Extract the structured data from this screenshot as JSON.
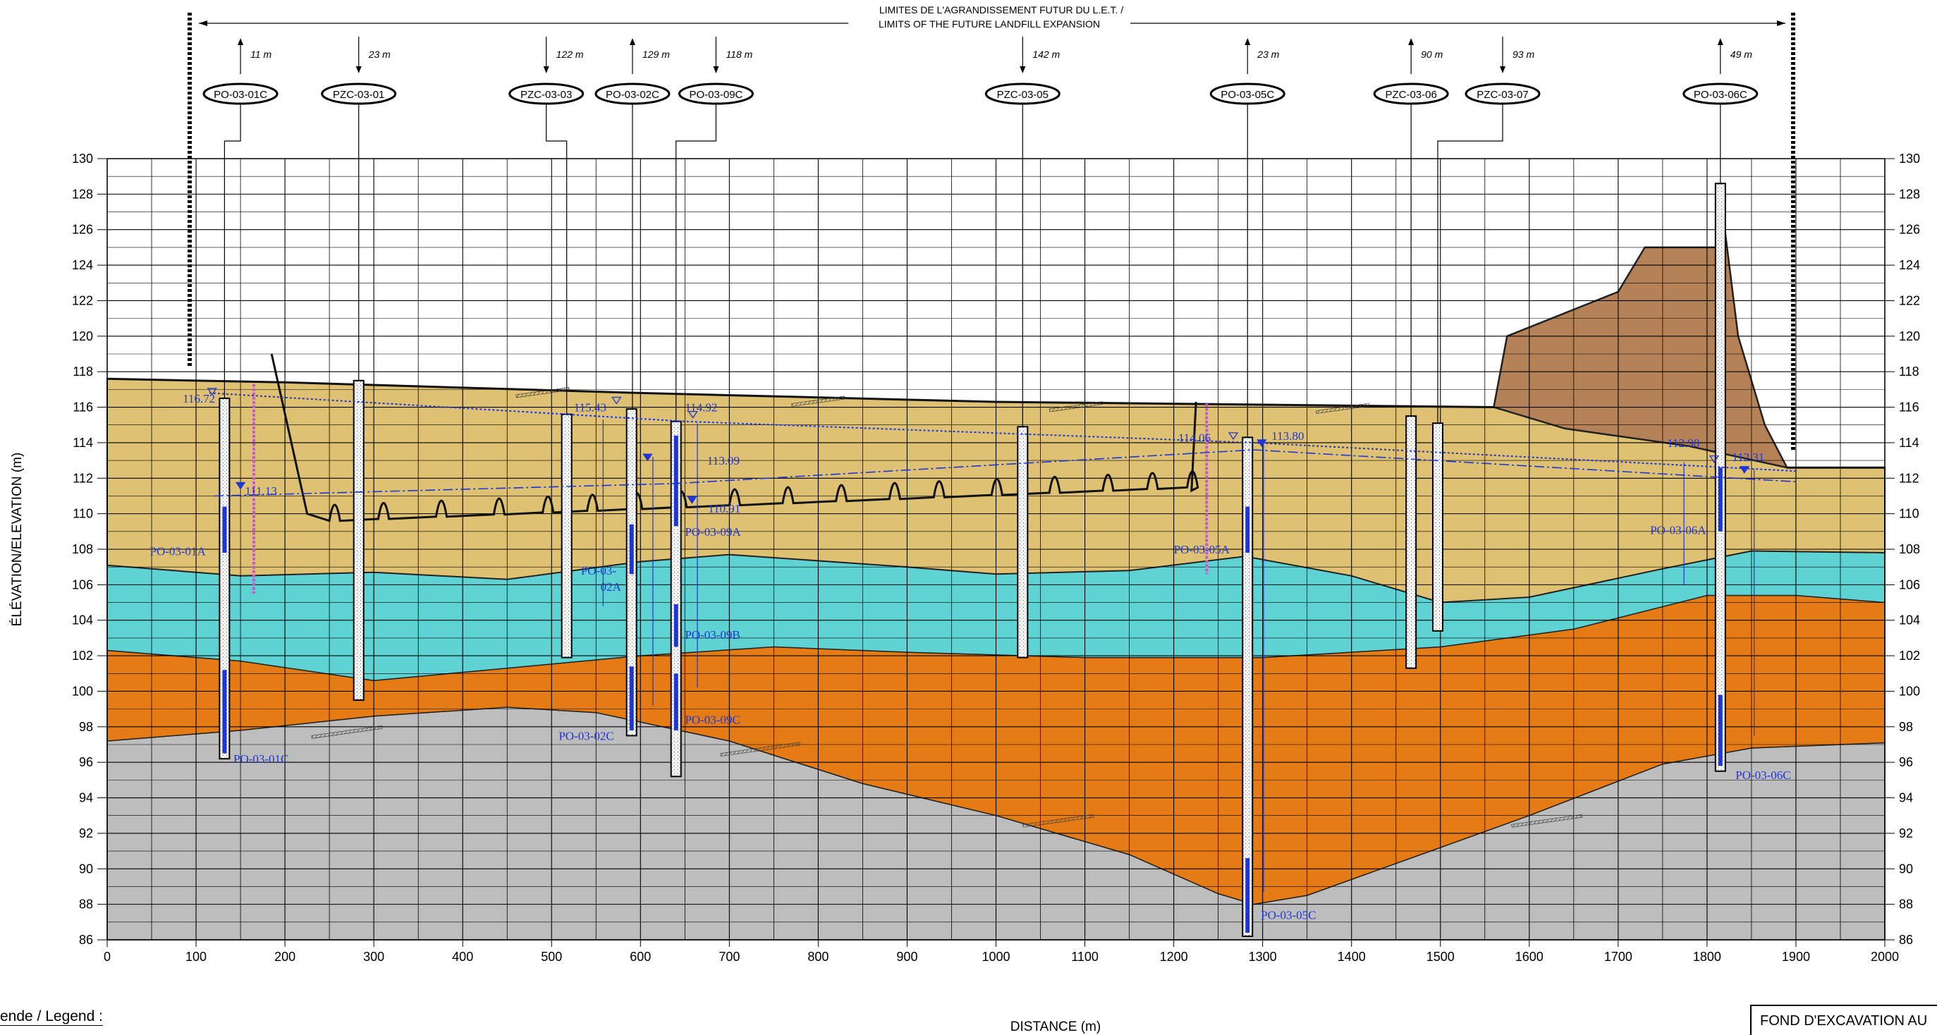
{
  "header": {
    "limits_fr": "LIMITES DE L'AGRANDISSEMENT FUTUR DU L.E.T. /",
    "limits_en": "LIMITS OF THE FUTURE LANDFILL EXPANSION"
  },
  "axes": {
    "y_label": "ÉLÉVATION/ELEVATION (m)",
    "x_label": "DISTANCE (m)",
    "y_ticks": [
      86,
      88,
      90,
      92,
      94,
      96,
      98,
      100,
      102,
      104,
      106,
      108,
      110,
      112,
      114,
      116,
      118,
      120,
      122,
      124,
      126,
      128,
      130
    ],
    "x_ticks": [
      0,
      100,
      200,
      300,
      400,
      500,
      600,
      700,
      800,
      900,
      1000,
      1100,
      1200,
      1300,
      1400,
      1500,
      1600,
      1700,
      1800,
      1900,
      2000
    ],
    "x_range": [
      0,
      2000
    ],
    "y_range": [
      86,
      130
    ]
  },
  "boreholes": [
    {
      "label": "PO-03-01C",
      "x": 150,
      "offset": "11 m",
      "dir": "up",
      "pipe_x": 132,
      "top": 116.5,
      "bottom": 96.2
    },
    {
      "label": "PZC-03-01",
      "x": 283,
      "offset": "23 m",
      "dir": "down",
      "pipe_x": 283,
      "top": 117.5,
      "bottom": 99.5
    },
    {
      "label": "PZC-03-03",
      "x": 494,
      "offset": "122 m",
      "dir": "down",
      "pipe_x": 517,
      "top": 115.6,
      "bottom": 101.9
    },
    {
      "label": "PO-03-02C",
      "x": 591,
      "offset": "129 m",
      "dir": "up",
      "pipe_x": 590,
      "top": 115.9,
      "bottom": 97.5
    },
    {
      "label": "PO-03-09C",
      "x": 685,
      "offset": "118 m",
      "dir": "down",
      "pipe_x": 640,
      "top": 115.2,
      "bottom": 95.2
    },
    {
      "label": "PZC-03-05",
      "x": 1030,
      "offset": "142 m",
      "dir": "down",
      "pipe_x": 1030,
      "top": 114.9,
      "bottom": 101.9
    },
    {
      "label": "PO-03-05C",
      "x": 1283,
      "offset": "23 m",
      "dir": "up",
      "pipe_x": 1283,
      "top": 114.3,
      "bottom": 86.2
    },
    {
      "label": "PZC-03-06",
      "x": 1467,
      "offset": "90 m",
      "dir": "up",
      "pipe_x": 1467,
      "top": 115.5,
      "bottom": 101.3
    },
    {
      "label": "PZC-03-07",
      "x": 1570,
      "offset": "93 m",
      "dir": "down",
      "pipe_x": 1497,
      "top": 115.1,
      "bottom": 103.4
    },
    {
      "label": "PO-03-06C",
      "x": 1815,
      "offset": "49 m",
      "dir": "up",
      "pipe_x": 1815,
      "top": 128.6,
      "bottom": 95.5
    }
  ],
  "water_levels": [
    {
      "value": "116.72",
      "x": 85,
      "y": 116.5
    },
    {
      "value": "111.13",
      "x": 155,
      "y": 111.3
    },
    {
      "value": "115.43",
      "x": 525,
      "y": 116.0
    },
    {
      "value": "114.92",
      "x": 650,
      "y": 116.0
    },
    {
      "value": "113.09",
      "x": 675,
      "y": 113.0
    },
    {
      "value": "110.91",
      "x": 676,
      "y": 110.3
    },
    {
      "value": "114.06",
      "x": 1205,
      "y": 114.3
    },
    {
      "value": "113.80",
      "x": 1310,
      "y": 114.4
    },
    {
      "value": "112.90",
      "x": 1755,
      "y": 114.0
    },
    {
      "value": "112.31",
      "x": 1828,
      "y": 113.2
    }
  ],
  "well_labels": [
    {
      "text": "PO-03-01A",
      "x": 48,
      "y": 107.9
    },
    {
      "text": "PO-03-01C",
      "x": 142,
      "y": 96.2
    },
    {
      "text": "PO-03-",
      "x": 533,
      "y": 106.8
    },
    {
      "text": "02A",
      "x": 555,
      "y": 105.9
    },
    {
      "text": "PO-03-02C",
      "x": 508,
      "y": 97.5
    },
    {
      "text": "PO-03-09A",
      "x": 650,
      "y": 109.0
    },
    {
      "text": "PO-03-09B",
      "x": 650,
      "y": 103.2
    },
    {
      "text": "PO-03-09C",
      "x": 650,
      "y": 98.4
    },
    {
      "text": "PO-03-05A",
      "x": 1200,
      "y": 108.0
    },
    {
      "text": "PO-03-05C",
      "x": 1298,
      "y": 87.4
    },
    {
      "text": "PO-03-06A",
      "x": 1736,
      "y": 109.1
    },
    {
      "text": "PO-03-06C",
      "x": 1832,
      "y": 95.3
    }
  ],
  "legend": {
    "title": "ende / Legend :",
    "excavation": "FOND D'EXCAVATION AU"
  },
  "colors": {
    "fill_top": "#dfc173",
    "aquifer": "#5fd3d3",
    "orange_layer": "#e57b14",
    "bedrock": "#bdbdbd",
    "berm": "#b58156",
    "well_blue": "#1f36d6",
    "magenta": "#c65ac6"
  }
}
